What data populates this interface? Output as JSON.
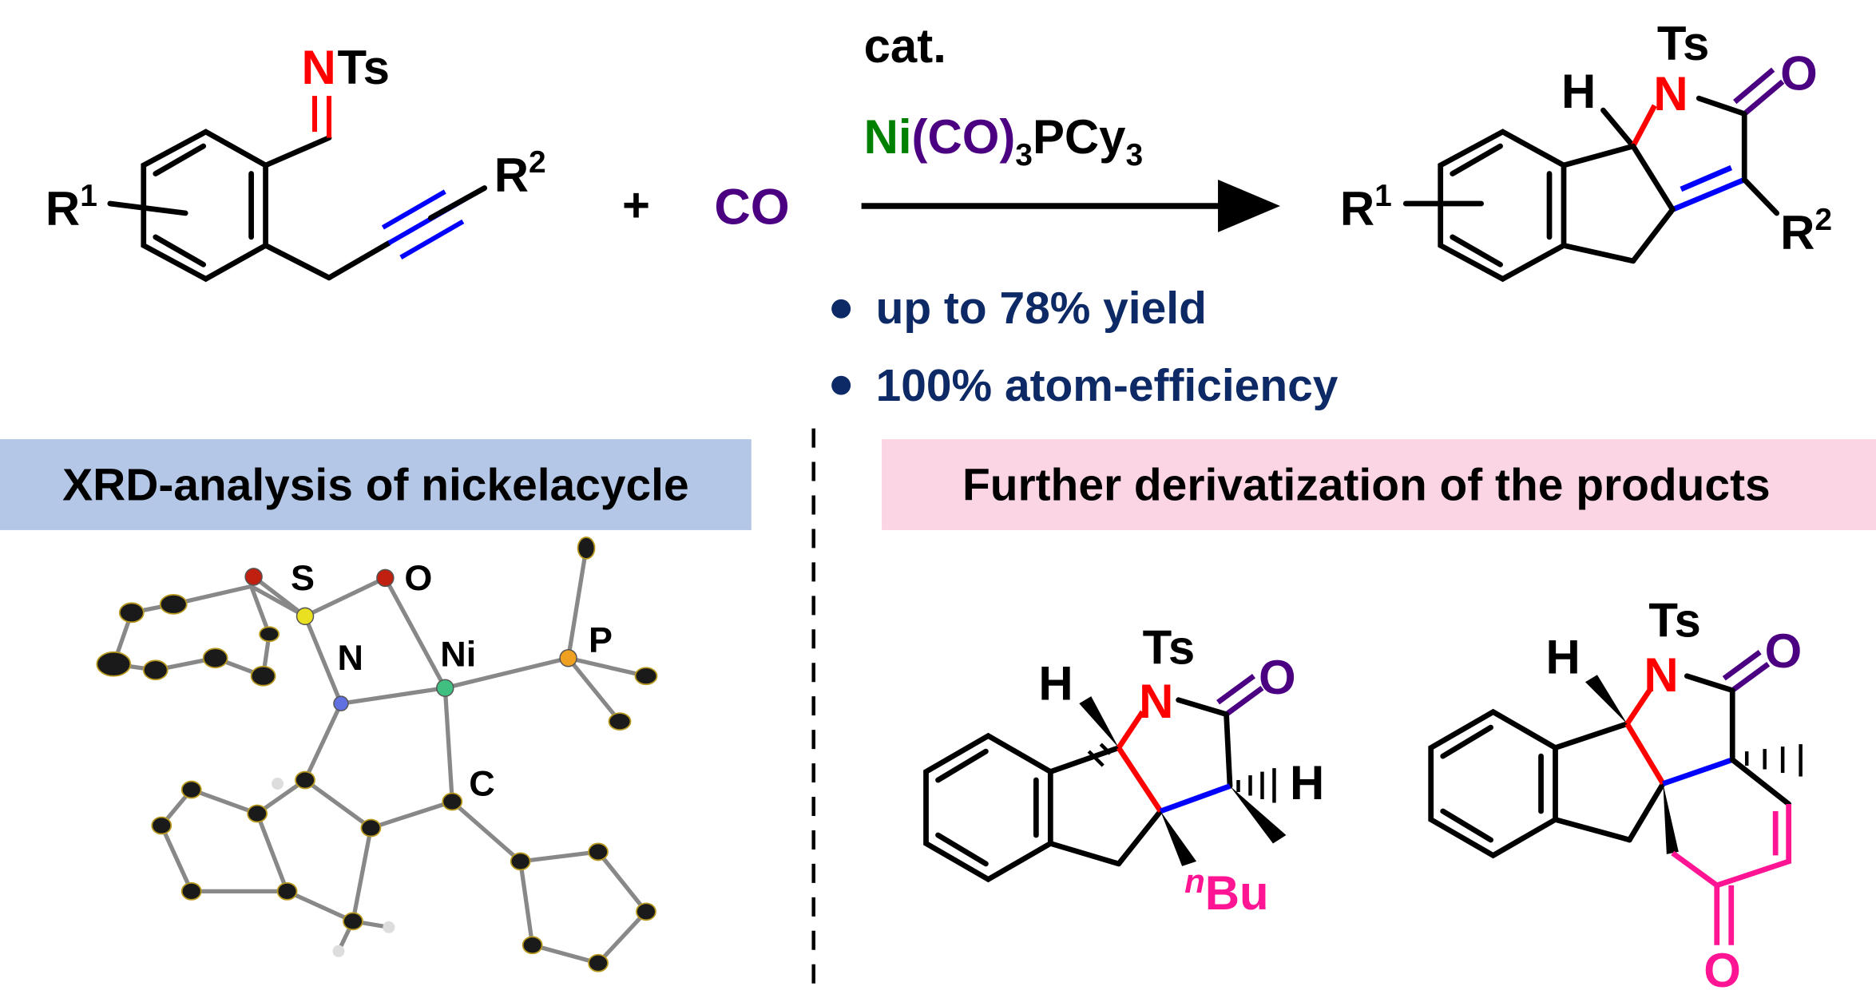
{
  "reaction": {
    "reactant_imine": {
      "N": "N",
      "Ts": "Ts"
    },
    "reactant_R1": "R",
    "reactant_R1_sup": "1",
    "reactant_R2": "R",
    "reactant_R2_sup": "2",
    "plus": "+",
    "co": "CO",
    "catalyst_label": "cat.",
    "catalyst": {
      "ni": "Ni",
      "paren_open": "(",
      "co": "CO",
      "paren_close": ")",
      "sub3": "3",
      "pcy": "PCy",
      "sub3b": "3"
    },
    "product": {
      "H": "H",
      "N": "N",
      "Ts": "Ts",
      "O": "O",
      "R1": "R",
      "R1_sup": "1",
      "R2": "R",
      "R2_sup": "2"
    },
    "bullets": [
      "up to 78% yield",
      "100% atom-efficiency"
    ]
  },
  "panels": {
    "left_title": "XRD-analysis of nickelacycle",
    "right_title": "Further derivatization of the products"
  },
  "xrd_labels": {
    "S": "S",
    "O": "O",
    "N": "N",
    "Ni": "Ni",
    "P": "P",
    "C": "C"
  },
  "derivative1": {
    "H1": "H",
    "Ts": "Ts",
    "N": "N",
    "O": "O",
    "H2": "H",
    "nBu_sup": "n",
    "nBu": "Bu"
  },
  "derivative2": {
    "H": "H",
    "Ts": "Ts",
    "N": "N",
    "O1": "O",
    "O2": "O"
  },
  "colors": {
    "nitrogen": "#ff0000",
    "carbonyl": "#4b0082",
    "nickel": "#008000",
    "alkyne": "#0000ff",
    "bullet_text": "#0d2a66",
    "xrd_box": "#b4c7e7",
    "deriv_box": "#fcd5e5",
    "new_ring": "#ff1493"
  }
}
